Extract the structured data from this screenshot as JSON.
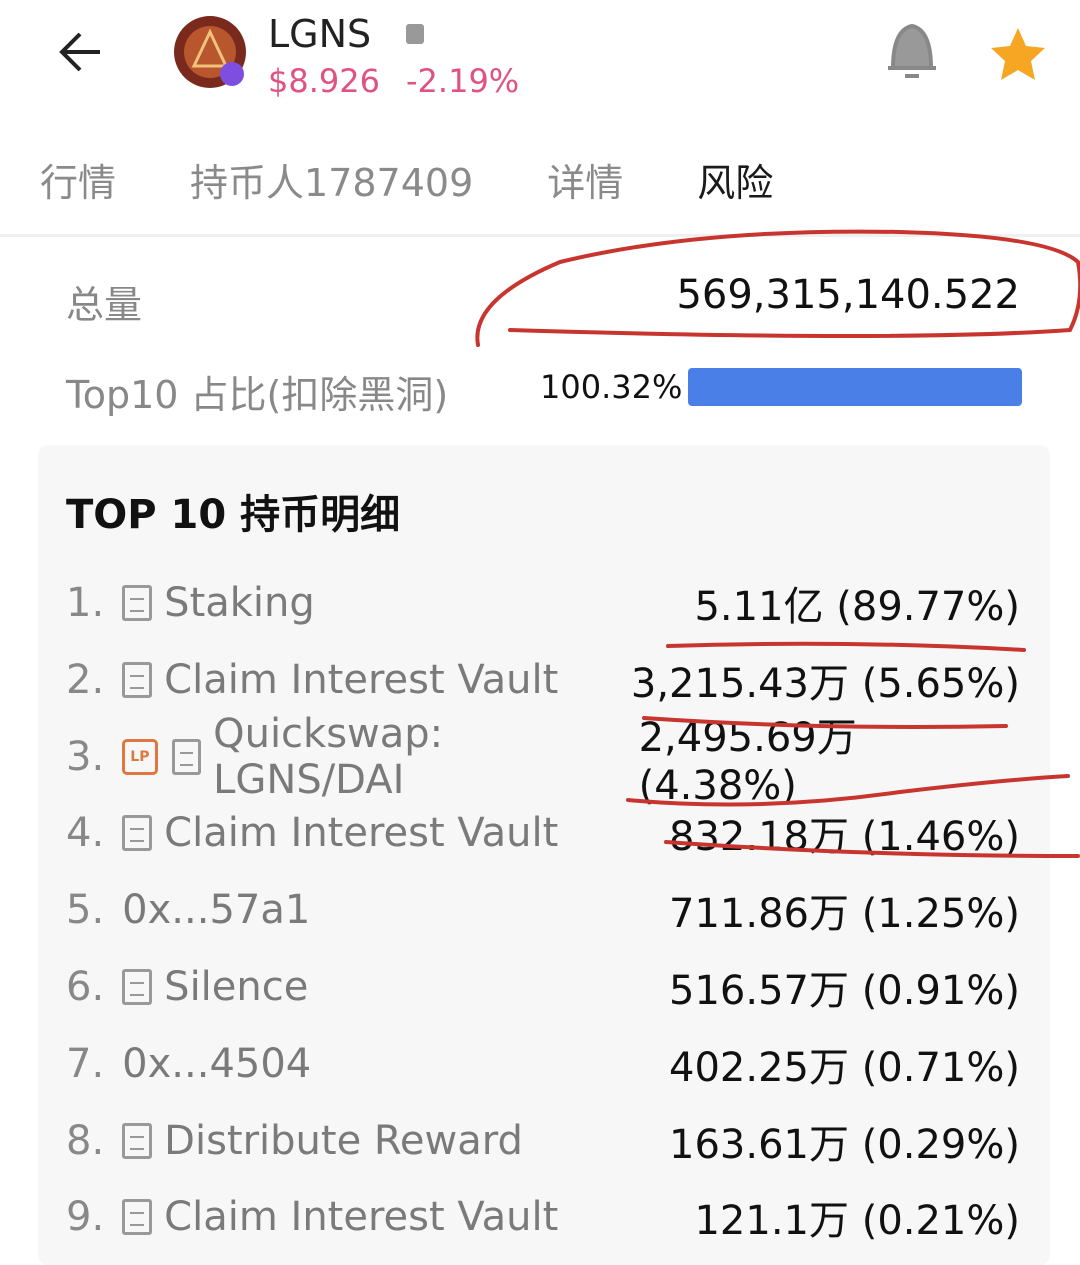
{
  "header": {
    "symbol": "LGNS",
    "price": "$8.926",
    "change": "-2.19%"
  },
  "tabs": {
    "items": [
      "行情",
      "持币人1787409",
      "详情",
      "风险"
    ],
    "active": 3
  },
  "summary": {
    "total_label": "总量",
    "total": "569,315,140.522",
    "top10_label": "Top10 占比(扣除黑洞)",
    "top10_pct": "100.32%"
  },
  "holders": {
    "title": "TOP 10 持币明细",
    "rows": [
      {
        "rank": "1.",
        "name": "Staking",
        "amount": "5.11亿 (89.77%)",
        "contract": true
      },
      {
        "rank": "2.",
        "name": "Claim Interest Vault",
        "amount": "3,215.43万 (5.65%)",
        "contract": true
      },
      {
        "rank": "3.",
        "badge": "LP",
        "name": "Quickswap: LGNS/DAI",
        "amount": "2,495.69万 (4.38%)",
        "contract": true
      },
      {
        "rank": "4.",
        "name": "Claim Interest Vault",
        "amount": "832.18万 (1.46%)",
        "contract": true
      },
      {
        "rank": "5.",
        "name": "0x...57a1",
        "amount": "711.86万 (1.25%)",
        "contract": false
      },
      {
        "rank": "6.",
        "name": "Silence",
        "amount": "516.57万 (0.91%)",
        "contract": true
      },
      {
        "rank": "7.",
        "name": "0x...4504",
        "amount": "402.25万 (0.71%)",
        "contract": false
      },
      {
        "rank": "8.",
        "name": "Distribute Reward",
        "amount": "163.61万 (0.29%)",
        "contract": true
      },
      {
        "rank": "9.",
        "name": "Claim Interest Vault",
        "amount": "121.1万 (0.21%)",
        "contract": true
      }
    ]
  }
}
